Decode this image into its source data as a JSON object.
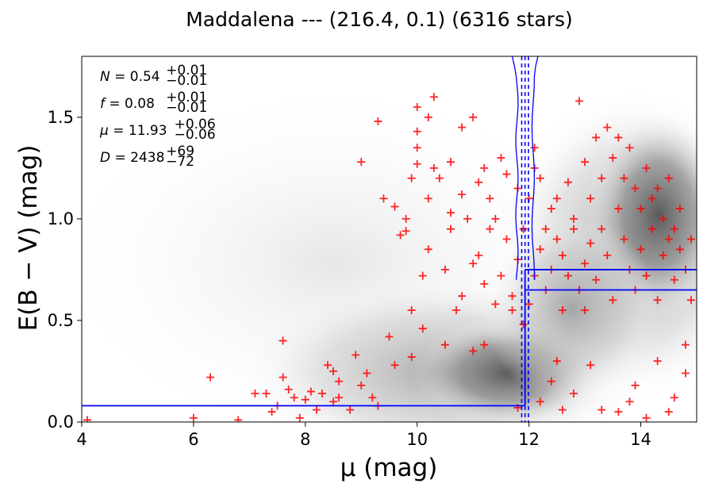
{
  "chart_data": {
    "type": "scatter",
    "title": "Maddalena --- (216.4, 0.1) (6316 stars)",
    "xlabel": "μ (mag)",
    "ylabel": "E(B − V) (mag)",
    "xlim": [
      4,
      15
    ],
    "ylim": [
      0,
      1.8
    ],
    "x_ticks": [
      4,
      6,
      8,
      10,
      12,
      14
    ],
    "y_ticks": [
      0.0,
      0.5,
      1.0,
      1.5
    ],
    "x_tick_labels": [
      "4",
      "6",
      "8",
      "10",
      "12",
      "14"
    ],
    "y_tick_labels": [
      "0.0",
      "0.5",
      "1.0",
      "1.5"
    ],
    "grid": false,
    "background": "grayscale density map of stellar distribution",
    "marker": "+",
    "marker_color": "#ff0000",
    "model_color": "#0000ff",
    "annotations": [
      {
        "symbol": "N",
        "value": "0.54",
        "plus": "+0.01",
        "minus": "−0.01"
      },
      {
        "symbol": "f",
        "value": "0.08",
        "plus": "+0.01",
        "minus": "−0.01"
      },
      {
        "symbol": "μ",
        "value": "11.93",
        "plus": "+0.06",
        "minus": "−0.06"
      },
      {
        "symbol": "D",
        "value": "2438",
        "plus": "+69",
        "minus": "−72"
      }
    ],
    "model": {
      "foreground_extinction": 0.08,
      "background_extinction_lower": 0.65,
      "background_extinction_upper": 0.75,
      "step_distance_modulus": 11.93,
      "step_distance_bounds": [
        11.87,
        11.99
      ]
    },
    "scatter_sample": [
      [
        4.1,
        0.01
      ],
      [
        6.0,
        0.02
      ],
      [
        6.3,
        0.22
      ],
      [
        6.8,
        0.01
      ],
      [
        7.1,
        0.14
      ],
      [
        7.3,
        0.14
      ],
      [
        7.4,
        0.05
      ],
      [
        7.5,
        0.08
      ],
      [
        7.6,
        0.4
      ],
      [
        7.6,
        0.22
      ],
      [
        7.7,
        0.16
      ],
      [
        7.8,
        0.12
      ],
      [
        7.9,
        0.02
      ],
      [
        8.0,
        0.11
      ],
      [
        8.1,
        0.15
      ],
      [
        8.2,
        0.06
      ],
      [
        8.3,
        0.14
      ],
      [
        8.4,
        0.28
      ],
      [
        8.5,
        0.25
      ],
      [
        8.5,
        0.1
      ],
      [
        8.6,
        0.12
      ],
      [
        8.6,
        0.2
      ],
      [
        8.8,
        0.06
      ],
      [
        8.9,
        0.33
      ],
      [
        9.0,
        1.28
      ],
      [
        9.0,
        0.18
      ],
      [
        9.1,
        0.24
      ],
      [
        9.2,
        0.12
      ],
      [
        9.3,
        1.48
      ],
      [
        9.3,
        0.08
      ],
      [
        9.4,
        1.1
      ],
      [
        9.5,
        0.42
      ],
      [
        9.6,
        0.28
      ],
      [
        9.6,
        1.06
      ],
      [
        9.7,
        0.92
      ],
      [
        9.8,
        1.0
      ],
      [
        9.8,
        0.94
      ],
      [
        9.9,
        0.32
      ],
      [
        9.9,
        0.55
      ],
      [
        9.9,
        1.2
      ],
      [
        10.0,
        1.55
      ],
      [
        10.0,
        1.35
      ],
      [
        10.0,
        1.43
      ],
      [
        10.0,
        1.27
      ],
      [
        10.1,
        0.72
      ],
      [
        10.1,
        0.46
      ],
      [
        10.2,
        1.5
      ],
      [
        10.2,
        0.85
      ],
      [
        10.2,
        1.1
      ],
      [
        10.3,
        1.6
      ],
      [
        10.3,
        1.25
      ],
      [
        10.4,
        1.2
      ],
      [
        10.5,
        0.75
      ],
      [
        10.5,
        0.38
      ],
      [
        10.6,
        1.28
      ],
      [
        10.6,
        0.95
      ],
      [
        10.6,
        1.03
      ],
      [
        10.7,
        0.55
      ],
      [
        10.8,
        1.45
      ],
      [
        10.8,
        0.62
      ],
      [
        10.8,
        1.12
      ],
      [
        10.9,
        1.0
      ],
      [
        11.0,
        0.35
      ],
      [
        11.0,
        0.78
      ],
      [
        11.0,
        1.5
      ],
      [
        11.1,
        0.82
      ],
      [
        11.1,
        1.18
      ],
      [
        11.2,
        0.68
      ],
      [
        11.2,
        1.25
      ],
      [
        11.2,
        0.38
      ],
      [
        11.3,
        0.95
      ],
      [
        11.3,
        1.1
      ],
      [
        11.4,
        0.58
      ],
      [
        11.4,
        1.0
      ],
      [
        11.5,
        1.3
      ],
      [
        11.5,
        0.72
      ],
      [
        11.6,
        0.9
      ],
      [
        11.6,
        1.22
      ],
      [
        11.7,
        0.55
      ],
      [
        11.7,
        0.62
      ],
      [
        11.8,
        0.8
      ],
      [
        11.8,
        1.15
      ],
      [
        11.9,
        0.48
      ],
      [
        11.9,
        0.95
      ],
      [
        12.0,
        1.1
      ],
      [
        12.0,
        0.58
      ],
      [
        12.1,
        0.72
      ],
      [
        12.1,
        1.35
      ],
      [
        12.1,
        1.25
      ],
      [
        12.2,
        0.85
      ],
      [
        12.2,
        1.2
      ],
      [
        12.3,
        0.65
      ],
      [
        12.3,
        0.95
      ],
      [
        12.4,
        0.75
      ],
      [
        12.4,
        1.05
      ],
      [
        12.5,
        0.9
      ],
      [
        12.5,
        1.1
      ],
      [
        12.5,
        0.3
      ],
      [
        12.6,
        0.55
      ],
      [
        12.6,
        0.82
      ],
      [
        12.7,
        1.18
      ],
      [
        12.7,
        0.72
      ],
      [
        12.8,
        0.95
      ],
      [
        12.8,
        1.0
      ],
      [
        12.9,
        1.58
      ],
      [
        12.9,
        0.65
      ],
      [
        13.0,
        0.78
      ],
      [
        13.0,
        1.28
      ],
      [
        13.0,
        0.55
      ],
      [
        13.1,
        1.1
      ],
      [
        13.1,
        0.88
      ],
      [
        13.2,
        0.7
      ],
      [
        13.2,
        1.4
      ],
      [
        13.3,
        0.95
      ],
      [
        13.3,
        1.2
      ],
      [
        13.4,
        1.45
      ],
      [
        13.4,
        0.82
      ],
      [
        13.5,
        1.3
      ],
      [
        13.5,
        0.6
      ],
      [
        13.6,
        1.4
      ],
      [
        13.6,
        1.05
      ],
      [
        13.7,
        0.9
      ],
      [
        13.7,
        1.2
      ],
      [
        13.8,
        0.75
      ],
      [
        13.8,
        1.35
      ],
      [
        13.9,
        1.15
      ],
      [
        13.9,
        0.65
      ],
      [
        14.0,
        1.05
      ],
      [
        14.0,
        0.85
      ],
      [
        14.1,
        1.25
      ],
      [
        14.1,
        0.72
      ],
      [
        14.2,
        1.1
      ],
      [
        14.2,
        0.95
      ],
      [
        14.3,
        1.15
      ],
      [
        14.3,
        0.6
      ],
      [
        14.4,
        0.82
      ],
      [
        14.4,
        1.0
      ],
      [
        14.5,
        0.9
      ],
      [
        14.5,
        1.2
      ],
      [
        14.6,
        0.7
      ],
      [
        14.6,
        0.95
      ],
      [
        14.7,
        0.85
      ],
      [
        14.7,
        1.05
      ],
      [
        14.8,
        0.75
      ],
      [
        14.8,
        0.38
      ],
      [
        14.9,
        0.9
      ],
      [
        14.9,
        0.6
      ],
      [
        13.6,
        0.05
      ],
      [
        13.8,
        0.1
      ],
      [
        14.1,
        0.02
      ],
      [
        14.6,
        0.12
      ],
      [
        14.8,
        0.24
      ],
      [
        13.3,
        0.06
      ],
      [
        12.8,
        0.14
      ],
      [
        12.6,
        0.06
      ],
      [
        12.4,
        0.2
      ],
      [
        13.1,
        0.28
      ],
      [
        13.9,
        0.18
      ],
      [
        14.3,
        0.3
      ],
      [
        14.5,
        0.05
      ],
      [
        12.2,
        0.1
      ],
      [
        11.8,
        0.07
      ]
    ]
  }
}
